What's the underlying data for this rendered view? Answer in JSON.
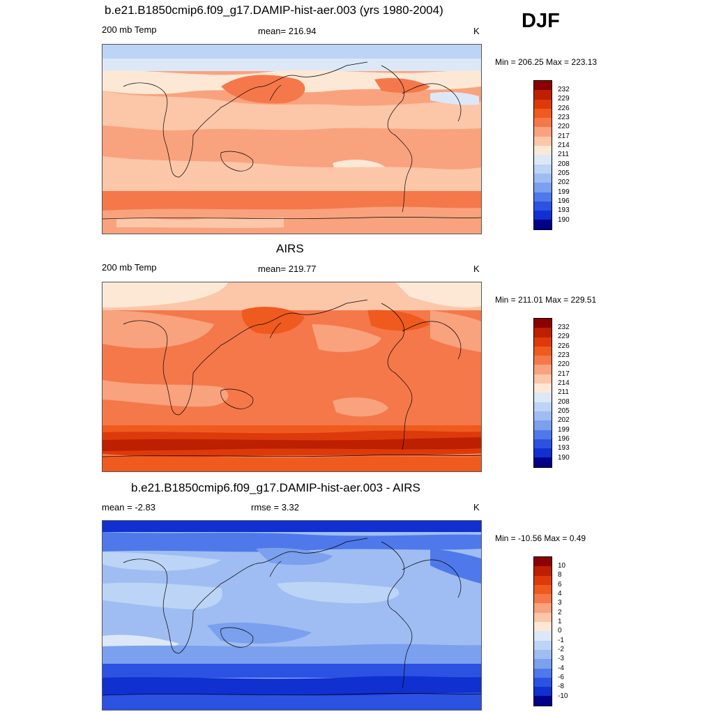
{
  "season": "DJF",
  "panels": [
    {
      "title": "b.e21.B1850cmip6.f09_g17.DAMIP-hist-aer.003 (yrs 1980-2004)",
      "left_label": "200 mb Temp",
      "center_label": "mean= 216.94",
      "units": "K",
      "minmax": "Min = 206.25 Max = 223.13"
    },
    {
      "title": "AIRS",
      "left_label": "200 mb Temp",
      "center_label": "mean= 219.77",
      "units": "K",
      "minmax": "Min = 211.01 Max = 229.51"
    },
    {
      "title": "b.e21.B1850cmip6.f09_g17.DAMIP-hist-aer.003 - AIRS",
      "left_label": "mean =  -2.83",
      "center_label": "rmse =    3.32",
      "units": "K",
      "minmax": "Min = -10.56 Max =   0.49"
    }
  ],
  "chart_data": [
    {
      "type": "heatmap",
      "title": "b.e21.B1850cmip6.f09_g17.DAMIP-hist-aer.003 (yrs 1980-2004)",
      "variable": "200 mb Temp",
      "units": "K",
      "mean": 216.94,
      "min": 206.25,
      "max": 223.13,
      "colorbar_labels": [
        "232",
        "229",
        "226",
        "223",
        "220",
        "217",
        "214",
        "211",
        "208",
        "205",
        "202",
        "199",
        "196",
        "193",
        "190"
      ],
      "colorbar_colors": [
        "#8b0000",
        "#bd2000",
        "#dd3a0c",
        "#ef5a1e",
        "#f5784a",
        "#f9a27e",
        "#fcc6a8",
        "#fde8d6",
        "#dce8f7",
        "#bcd4f5",
        "#9fbdf2",
        "#7aa0ee",
        "#4f79ea",
        "#2c52e2",
        "#1030d0",
        "#000088"
      ]
    },
    {
      "type": "heatmap",
      "title": "AIRS",
      "variable": "200 mb Temp",
      "units": "K",
      "mean": 219.77,
      "min": 211.01,
      "max": 229.51,
      "colorbar_labels": [
        "232",
        "229",
        "226",
        "223",
        "220",
        "217",
        "214",
        "211",
        "208",
        "205",
        "202",
        "199",
        "196",
        "193",
        "190"
      ],
      "colorbar_colors": [
        "#8b0000",
        "#bd2000",
        "#dd3a0c",
        "#ef5a1e",
        "#f5784a",
        "#f9a27e",
        "#fcc6a8",
        "#fde8d6",
        "#dce8f7",
        "#bcd4f5",
        "#9fbdf2",
        "#7aa0ee",
        "#4f79ea",
        "#2c52e2",
        "#1030d0",
        "#000088"
      ]
    },
    {
      "type": "heatmap",
      "title": "b.e21.B1850cmip6.f09_g17.DAMIP-hist-aer.003 - AIRS",
      "units": "K",
      "mean": -2.83,
      "rmse": 3.32,
      "min": -10.56,
      "max": 0.49,
      "colorbar_labels": [
        "10",
        "8",
        "6",
        "4",
        "3",
        "2",
        "1",
        "0",
        "-1",
        "-2",
        "-3",
        "-4",
        "-6",
        "-8",
        "-10"
      ],
      "colorbar_colors": [
        "#8b0000",
        "#bd2000",
        "#dd3a0c",
        "#ef5a1e",
        "#f5784a",
        "#f9a27e",
        "#fcc6a8",
        "#fde8d6",
        "#dce8f7",
        "#bcd4f5",
        "#9fbdf2",
        "#7aa0ee",
        "#4f79ea",
        "#2c52e2",
        "#1030d0",
        "#000088"
      ]
    }
  ]
}
